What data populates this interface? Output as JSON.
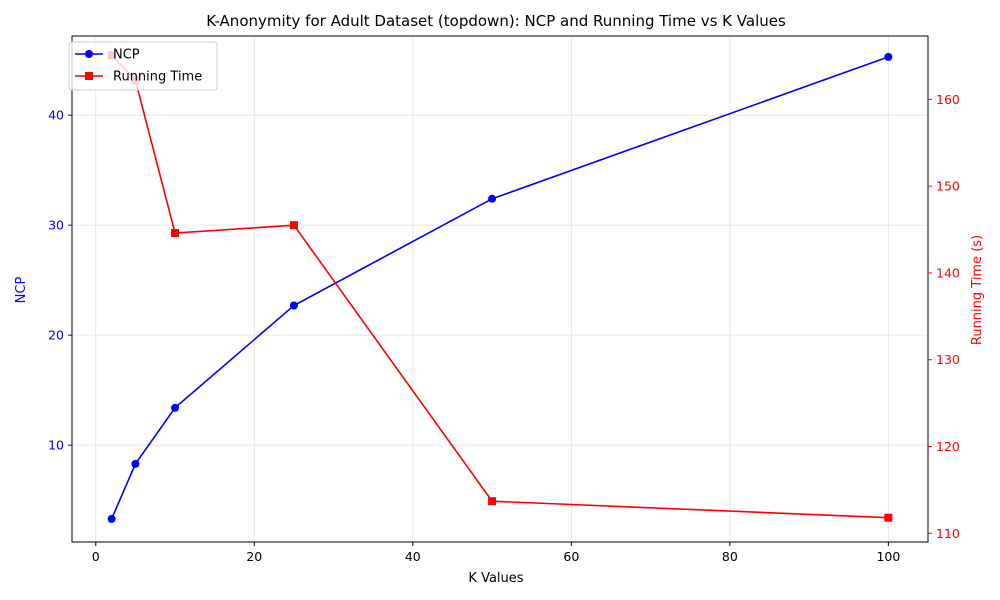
{
  "chart_data": {
    "type": "line",
    "title": "K-Anonymity for Adult Dataset (topdown): NCP and Running Time vs K Values",
    "xlabel": "K Values",
    "ylabel_left": "NCP",
    "ylabel_right": "Running Time (s)",
    "xlim": [
      -3,
      105
    ],
    "ylim_left": [
      1.2,
      47.2
    ],
    "ylim_right": [
      109.0,
      167.3
    ],
    "xticks": [
      "0",
      "20",
      "40",
      "60",
      "80",
      "100"
    ],
    "yticks_left": [
      "10",
      "20",
      "30",
      "40"
    ],
    "yticks_right": [
      "110",
      "120",
      "130",
      "140",
      "150",
      "160"
    ],
    "grid": true,
    "legend_position": "top-left",
    "x": [
      2,
      5,
      10,
      25,
      50,
      100
    ],
    "series": [
      {
        "name": "NCP",
        "axis": "left",
        "color": "#0000ff",
        "marker": "circle",
        "values": [
          3.3,
          8.3,
          13.4,
          22.7,
          32.4,
          45.3
        ]
      },
      {
        "name": "Running Time",
        "axis": "right",
        "color": "#ff0000",
        "marker": "square",
        "values": [
          165.1,
          162.2,
          144.6,
          145.5,
          113.7,
          111.8
        ]
      }
    ]
  }
}
